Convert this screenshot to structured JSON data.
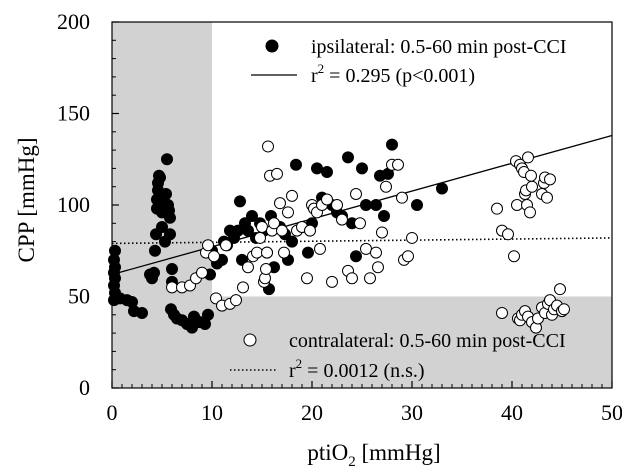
{
  "chart_data": {
    "type": "scatter",
    "xlabel": "ptiO",
    "xlabel_sub": "2",
    "xlabel_unit": " [mmHg]",
    "ylabel": "CPP [mmHg]",
    "xlim": [
      0,
      50
    ],
    "ylim": [
      0,
      200
    ],
    "x_ticks": [
      0,
      10,
      20,
      30,
      40,
      50
    ],
    "y_ticks": [
      0,
      50,
      100,
      150,
      200
    ],
    "x_tick_labels": [
      "0",
      "10",
      "20",
      "30",
      "40",
      "50"
    ],
    "y_tick_labels": [
      "0",
      "50",
      "100",
      "150",
      "200"
    ],
    "shaded_regions": [
      {
        "x": [
          0,
          10
        ],
        "y": [
          0,
          200
        ],
        "color": "#d2d2d2"
      },
      {
        "x": [
          10,
          50
        ],
        "y": [
          0,
          50
        ],
        "color": "#d2d2d2"
      }
    ],
    "series": [
      {
        "name": "ipsilateral: 0.5-60 min post-CCI",
        "marker": "filled-circle",
        "color": "#000000",
        "points": [
          [
            0.2,
            48
          ],
          [
            0.3,
            52
          ],
          [
            0.2,
            56
          ],
          [
            0.3,
            60
          ],
          [
            0.2,
            63
          ],
          [
            0.3,
            66
          ],
          [
            0.2,
            70
          ],
          [
            0.3,
            75
          ],
          [
            0.8,
            49
          ],
          [
            1.5,
            48
          ],
          [
            2,
            47
          ],
          [
            2.2,
            42
          ],
          [
            3,
            41
          ],
          [
            3.8,
            62
          ],
          [
            4,
            60
          ],
          [
            4.2,
            63
          ],
          [
            4.3,
            75
          ],
          [
            4.4,
            84
          ],
          [
            4.5,
            98
          ],
          [
            4.5,
            103
          ],
          [
            4.6,
            108
          ],
          [
            4.6,
            112
          ],
          [
            4.7,
            116
          ],
          [
            4.8,
            115
          ],
          [
            5,
            88
          ],
          [
            5,
            96
          ],
          [
            5.2,
            102
          ],
          [
            5.3,
            80
          ],
          [
            5.5,
            125
          ],
          [
            5.4,
            106
          ],
          [
            5.6,
            100
          ],
          [
            5.7,
            97
          ],
          [
            5.8,
            93
          ],
          [
            5.8,
            84
          ],
          [
            6,
            65
          ],
          [
            6,
            58
          ],
          [
            5.9,
            43
          ],
          [
            6.2,
            40
          ],
          [
            6.5,
            38
          ],
          [
            7,
            37
          ],
          [
            7.5,
            35
          ],
          [
            8,
            33
          ],
          [
            8.2,
            39
          ],
          [
            8.8,
            36
          ],
          [
            9.3,
            35
          ],
          [
            9.6,
            40
          ],
          [
            9.8,
            62
          ],
          [
            10,
            75
          ],
          [
            10.5,
            68
          ],
          [
            11,
            70
          ],
          [
            11.2,
            80
          ],
          [
            11.5,
            78
          ],
          [
            11.8,
            86
          ],
          [
            12.2,
            82
          ],
          [
            12.6,
            86
          ],
          [
            12.8,
            102
          ],
          [
            13,
            70
          ],
          [
            13.3,
            90
          ],
          [
            13.6,
            86
          ],
          [
            14,
            94
          ],
          [
            14.4,
            82
          ],
          [
            14.8,
            90
          ],
          [
            15.2,
            86
          ],
          [
            15.5,
            74
          ],
          [
            15.7,
            54
          ],
          [
            15.9,
            94
          ],
          [
            16.2,
            66
          ],
          [
            16.8,
            88
          ],
          [
            17.3,
            84
          ],
          [
            17.6,
            70
          ],
          [
            18,
            80
          ],
          [
            18.4,
            122
          ],
          [
            19,
            88
          ],
          [
            19.6,
            74
          ],
          [
            20,
            90
          ],
          [
            20.5,
            120
          ],
          [
            21,
            104
          ],
          [
            21.5,
            118
          ],
          [
            22,
            100
          ],
          [
            22.5,
            96
          ],
          [
            23,
            94
          ],
          [
            23.6,
            126
          ],
          [
            24,
            90
          ],
          [
            24.4,
            72
          ],
          [
            25,
            120
          ],
          [
            25.4,
            100
          ],
          [
            26.4,
            100
          ],
          [
            26.8,
            116
          ],
          [
            27.2,
            94
          ],
          [
            27.6,
            117
          ],
          [
            28,
            133
          ],
          [
            30.5,
            100
          ],
          [
            33,
            109
          ]
        ]
      },
      {
        "name": "contralateral: 0.5-60 min post-CCI",
        "marker": "open-circle",
        "color": "#ffffff",
        "points": [
          [
            6,
            55
          ],
          [
            7,
            55
          ],
          [
            7.8,
            56
          ],
          [
            8.4,
            60
          ],
          [
            9,
            63
          ],
          [
            9.4,
            74
          ],
          [
            9.6,
            78
          ],
          [
            10.2,
            72
          ],
          [
            10.4,
            49
          ],
          [
            11,
            45
          ],
          [
            11.4,
            78
          ],
          [
            11.8,
            46
          ],
          [
            12.4,
            48
          ],
          [
            13.1,
            55
          ],
          [
            13.6,
            66
          ],
          [
            14.1,
            72
          ],
          [
            14.5,
            74
          ],
          [
            14.8,
            82
          ],
          [
            15,
            88
          ],
          [
            15.2,
            58
          ],
          [
            15.3,
            60
          ],
          [
            15.4,
            65
          ],
          [
            15.5,
            74
          ],
          [
            15.6,
            132
          ],
          [
            15.8,
            116
          ],
          [
            16,
            86
          ],
          [
            16.2,
            90
          ],
          [
            16.5,
            117
          ],
          [
            16.8,
            101
          ],
          [
            17,
            86
          ],
          [
            17.2,
            74
          ],
          [
            17.6,
            96
          ],
          [
            18,
            105
          ],
          [
            18.5,
            86
          ],
          [
            19,
            88
          ],
          [
            19.5,
            60
          ],
          [
            19.8,
            86
          ],
          [
            20,
            100
          ],
          [
            20.2,
            98
          ],
          [
            20.5,
            96
          ],
          [
            20.8,
            76
          ],
          [
            21,
            100
          ],
          [
            21.5,
            103
          ],
          [
            22,
            58
          ],
          [
            22.5,
            100
          ],
          [
            23,
            92
          ],
          [
            23.6,
            64
          ],
          [
            24,
            60
          ],
          [
            24.4,
            106
          ],
          [
            24.8,
            90
          ],
          [
            25.4,
            76
          ],
          [
            25.8,
            60
          ],
          [
            26.4,
            74
          ],
          [
            26.6,
            66
          ],
          [
            27,
            85
          ],
          [
            27.4,
            110
          ],
          [
            28,
            122
          ],
          [
            28.6,
            122
          ],
          [
            29,
            104
          ],
          [
            29.2,
            70
          ],
          [
            29.6,
            72
          ],
          [
            30,
            82
          ],
          [
            38.5,
            98
          ],
          [
            39,
            86
          ],
          [
            39.6,
            84
          ],
          [
            39,
            41
          ],
          [
            40.2,
            72
          ],
          [
            40.5,
            100
          ],
          [
            40.4,
            124
          ],
          [
            40.8,
            122
          ],
          [
            41,
            120
          ],
          [
            41.2,
            118
          ],
          [
            41.3,
            106
          ],
          [
            41.5,
            100
          ],
          [
            41.4,
            108
          ],
          [
            41.8,
            96
          ],
          [
            41.6,
            126
          ],
          [
            42,
            110
          ],
          [
            41.9,
            116
          ],
          [
            43,
            106
          ],
          [
            43.2,
            112
          ],
          [
            43.3,
            115
          ],
          [
            43.5,
            104
          ],
          [
            43.8,
            114
          ],
          [
            40.6,
            38
          ],
          [
            40.8,
            37
          ],
          [
            41,
            40
          ],
          [
            41.3,
            42
          ],
          [
            41.6,
            39
          ],
          [
            42,
            36
          ],
          [
            42.4,
            33
          ],
          [
            42.6,
            38
          ],
          [
            43,
            44
          ],
          [
            43.3,
            41
          ],
          [
            43.6,
            46
          ],
          [
            43.8,
            48
          ],
          [
            44,
            40
          ],
          [
            44.2,
            43
          ],
          [
            44.5,
            45
          ],
          [
            44.8,
            54
          ],
          [
            45,
            42
          ],
          [
            45.2,
            43
          ]
        ]
      }
    ],
    "fits": [
      {
        "name": "ipsilateral fit",
        "style": "solid",
        "x": [
          0,
          50
        ],
        "y": [
          62,
          138
        ]
      },
      {
        "name": "contralateral fit",
        "style": "dotted",
        "x": [
          0,
          50
        ],
        "y": [
          79,
          82
        ]
      }
    ],
    "legend": {
      "entries": [
        {
          "marker": "filled-circle",
          "text": "ipsilateral: 0.5-60 min post-CCI"
        },
        {
          "marker": "solid-line",
          "text_pre": "r",
          "text_sup": "2",
          "text_post": " = 0.295 (p<0.001)"
        },
        {
          "marker": "open-circle",
          "text": "contralateral: 0.5-60 min post-CCI"
        },
        {
          "marker": "dotted-line",
          "text_pre": "r",
          "text_sup": "2",
          "text_post": " = 0.0012 (n.s.)"
        }
      ]
    }
  }
}
